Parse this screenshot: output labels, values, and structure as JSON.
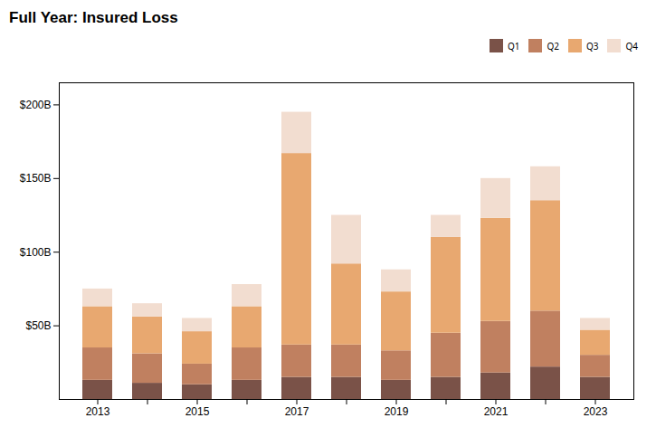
{
  "chart_data": {
    "type": "bar",
    "stacked": true,
    "title": "Full Year: Insured Loss",
    "categories": [
      "2013",
      null,
      "2015",
      null,
      "2017",
      null,
      "2019",
      null,
      "2021",
      null,
      "2023"
    ],
    "series": [
      {
        "name": "Q1",
        "color": "#7a5248",
        "values": [
          13,
          11,
          10,
          13,
          15,
          15,
          13,
          15,
          18,
          22,
          15
        ]
      },
      {
        "name": "Q2",
        "color": "#c08060",
        "values": [
          22,
          20,
          14,
          22,
          22,
          22,
          20,
          30,
          35,
          38,
          15
        ]
      },
      {
        "name": "Q3",
        "color": "#e8a870",
        "values": [
          28,
          25,
          22,
          28,
          130,
          55,
          40,
          65,
          70,
          75,
          17
        ]
      },
      {
        "name": "Q4",
        "color": "#f2ddd0",
        "values": [
          12,
          9,
          9,
          15,
          28,
          33,
          15,
          15,
          27,
          23,
          8
        ]
      }
    ],
    "ylim": [
      0,
      215
    ],
    "yticks": [
      {
        "value": 50,
        "label": "$50B"
      },
      {
        "value": 100,
        "label": "$100B"
      },
      {
        "value": 150,
        "label": "$150B"
      },
      {
        "value": 200,
        "label": "$200B"
      }
    ],
    "grid": false,
    "legend": "upper right"
  }
}
